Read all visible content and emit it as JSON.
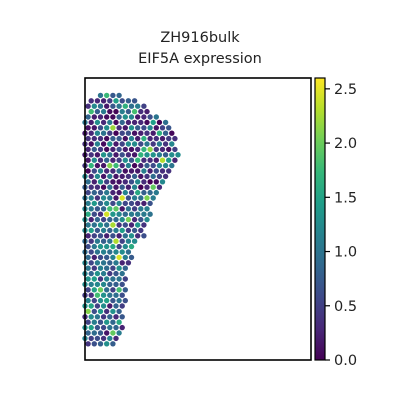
{
  "chart_data": {
    "type": "scatter",
    "title_line1": "ZH916bulk",
    "title_line2": "EIF5A expression",
    "xlabel": "",
    "ylabel": "",
    "colormap": "viridis",
    "color_range": [
      0.0,
      2.6
    ],
    "colorbar_ticks": [
      "0.0",
      "0.5",
      "1.0",
      "1.5",
      "2.0",
      "2.5"
    ],
    "colorbar_values": [
      0.0,
      0.5,
      1.0,
      1.5,
      2.0,
      2.5
    ],
    "grid": false,
    "legend": "colorbar-right",
    "spots": {
      "layout": "hexagonal grid, tissue section",
      "outline_rows": [
        [
          0.05,
          0.25,
          0.29
        ],
        [
          0.08,
          0.22,
          0.34
        ],
        [
          0.11,
          0.22,
          0.37
        ],
        [
          0.14,
          0.22,
          0.4
        ],
        [
          0.17,
          0.2,
          0.43
        ],
        [
          0.2,
          0.19,
          0.44
        ],
        [
          0.23,
          0.17,
          0.44
        ],
        [
          0.26,
          0.16,
          0.45
        ],
        [
          0.29,
          0.15,
          0.44
        ],
        [
          0.32,
          0.14,
          0.43
        ],
        [
          0.35,
          0.13,
          0.42
        ],
        [
          0.38,
          0.13,
          0.4
        ],
        [
          0.41,
          0.13,
          0.4
        ],
        [
          0.44,
          0.12,
          0.39
        ],
        [
          0.47,
          0.12,
          0.38
        ],
        [
          0.5,
          0.12,
          0.37
        ],
        [
          0.53,
          0.12,
          0.37
        ],
        [
          0.56,
          0.12,
          0.36
        ],
        [
          0.59,
          0.11,
          0.34
        ],
        [
          0.62,
          0.1,
          0.33
        ],
        [
          0.65,
          0.08,
          0.33
        ],
        [
          0.68,
          0.08,
          0.32
        ],
        [
          0.71,
          0.07,
          0.32
        ],
        [
          0.74,
          0.07,
          0.32
        ],
        [
          0.77,
          0.06,
          0.32
        ],
        [
          0.8,
          0.06,
          0.31
        ],
        [
          0.83,
          0.06,
          0.31
        ],
        [
          0.86,
          0.06,
          0.31
        ],
        [
          0.89,
          0.06,
          0.31
        ],
        [
          0.92,
          0.05,
          0.3
        ],
        [
          0.95,
          0.04,
          0.28
        ]
      ]
    }
  }
}
